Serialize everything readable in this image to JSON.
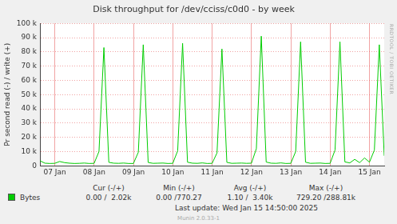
{
  "chart_data": {
    "type": "line",
    "title": "Disk throughput for /dev/cciss/c0d0 - by week",
    "y_label": "Pr second read (-) / write (+)",
    "categories": [
      null,
      null,
      null,
      "07 Jan",
      null,
      null,
      null,
      null,
      null,
      null,
      null,
      "08 Jan",
      null,
      null,
      null,
      null,
      null,
      null,
      null,
      "09 Jan",
      null,
      null,
      null,
      null,
      null,
      null,
      null,
      "10 Jan",
      null,
      null,
      null,
      null,
      null,
      null,
      null,
      "11 Jan",
      null,
      null,
      null,
      null,
      null,
      null,
      null,
      "12 Jan",
      null,
      null,
      null,
      null,
      null,
      null,
      null,
      "13 Jan",
      null,
      null,
      null,
      null,
      null,
      null,
      null,
      "14 Jan",
      null,
      null,
      null,
      null,
      null,
      null,
      null,
      "15 Jan",
      null,
      null,
      null
    ],
    "series": [
      {
        "name": "Bytes",
        "color": "#00cc00",
        "values": [
          3500,
          1800,
          1600,
          1700,
          3000,
          2200,
          1800,
          1600,
          1700,
          1900,
          1600,
          1700,
          10000,
          83000,
          2400,
          1800,
          1700,
          1900,
          1600,
          1600,
          9500,
          85000,
          2300,
          1700,
          1800,
          1900,
          1600,
          1700,
          10500,
          86000,
          2500,
          1800,
          1700,
          2000,
          1600,
          1700,
          9000,
          82000,
          2400,
          1700,
          1800,
          1900,
          1700,
          1800,
          12000,
          91000,
          2600,
          1800,
          1700,
          2000,
          1600,
          1700,
          10000,
          87000,
          2500,
          1700,
          1800,
          1900,
          1600,
          1700,
          11000,
          87000,
          2700,
          2000,
          4500,
          2200,
          5500,
          2500,
          11000,
          85000,
          7000
        ]
      }
    ],
    "ylim": [
      0,
      100000
    ],
    "yticks": [
      0,
      {
        "value": 10000,
        "label": "10 k"
      },
      {
        "value": 20000,
        "label": "20 k"
      },
      {
        "value": 30000,
        "label": "30 k"
      },
      {
        "value": 40000,
        "label": "40 k"
      },
      {
        "value": 50000,
        "label": "50 k"
      },
      {
        "value": 60000,
        "label": "60 k"
      },
      {
        "value": 70000,
        "label": "70 k"
      },
      {
        "value": 80000,
        "label": "80 k"
      },
      {
        "value": 90000,
        "label": "90 k"
      },
      {
        "value": 100000,
        "label": "100 k"
      }
    ],
    "grid": true,
    "legend_table": {
      "columns": [
        "Cur (-/+)",
        "Min (-/+)",
        "Avg (-/+)",
        "Max (-/+)"
      ],
      "rows": [
        {
          "name": "Bytes",
          "cells": [
            "0.00 /  2.02k",
            "0.00 /770.27",
            "1.10 /  3.40k",
            "729.20 /288.81k"
          ]
        }
      ]
    },
    "footer": [
      "Last update: Wed Jan 15 14:50:00 2025",
      "Munin 2.0.33-1"
    ],
    "side_text": "RRDTOOL / TOBI OETIKER"
  }
}
